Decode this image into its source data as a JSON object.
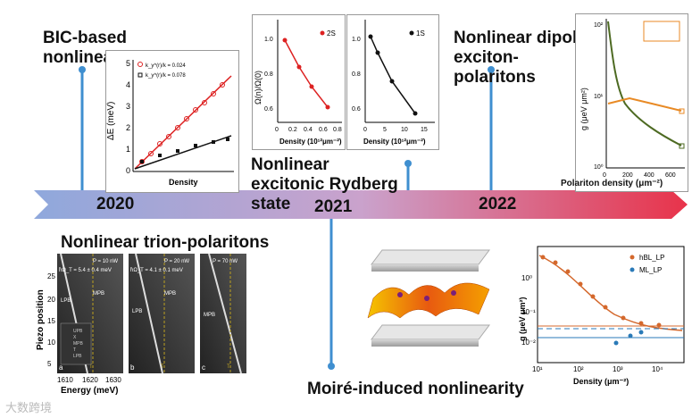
{
  "timeline": {
    "years": [
      "2020",
      "2021",
      "2022"
    ],
    "colors": {
      "start": "#8fa8dc",
      "mid": "#c7a3cf",
      "end": "#e8334a"
    }
  },
  "topics": {
    "bic": "BIC-based nonlinearity",
    "rydberg": "Nonlinear excitonic Rydberg state",
    "dipolar": "Nonlinear dipolar exciton-polaritons",
    "trion": "Nonlinear trion-polaritons",
    "moire": "Moiré-induced nonlinearity"
  },
  "bic_chart": {
    "ylabel": "ΔE (meV)",
    "xlabel": "Density",
    "legend": [
      "k_y^(r)/k = 0.024",
      "k_y^(r)/k = 0.078"
    ],
    "yticks": [
      "0",
      "1",
      "2",
      "3",
      "4",
      "5"
    ]
  },
  "rydberg_2s": {
    "ylabel": "Ω(n)/Ω(0)",
    "xlabel": "Density (10¹²μm⁻²)",
    "label": "2S",
    "xticks": [
      "0",
      "0.2",
      "0.4",
      "0.6",
      "0.8"
    ],
    "yticks": [
      "0.6",
      "0.8",
      "1.0"
    ]
  },
  "rydberg_1s": {
    "xlabel": "Density (10¹²μm⁻²)",
    "label": "1S",
    "xticks": [
      "0",
      "5",
      "10",
      "15"
    ],
    "yticks": [
      "0.6",
      "0.8",
      "1.0"
    ]
  },
  "dipolar_chart": {
    "ylabel": "g (μeV μm²)",
    "xlabel": "Polariton density (μm⁻²)",
    "xticks": [
      "0",
      "200",
      "400",
      "600"
    ],
    "yticks": [
      "10⁰",
      "10¹",
      "10²"
    ]
  },
  "trion_chart": {
    "ylabel": "Piezo position",
    "xlabel": "Energy (meV)",
    "xticks": [
      "1610",
      "1620",
      "1630"
    ],
    "yticks": [
      "25",
      "20",
      "15",
      "10",
      "5"
    ],
    "panels": [
      {
        "letter": "a",
        "power": "P = 10 nW",
        "g": "ħΩ_T = 5.4 ± 0.4 meV",
        "mpb": "MPB",
        "lpb": "LPB",
        "t": "T"
      },
      {
        "letter": "b",
        "power": "P = 20 nW",
        "g": "ħΩ_T = 4.1 ± 0.1 meV",
        "mpb": "MPB",
        "lpb": "LPB",
        "t": "T"
      },
      {
        "letter": "c",
        "power": "P = 70 nW",
        "g": "",
        "mpb": "MPB",
        "lpb": "",
        "t": "T"
      }
    ],
    "inset": [
      "UPB",
      "X",
      "MPB",
      "T",
      "LPB"
    ]
  },
  "moire_chart": {
    "ylabel": "g (μeV μm²)",
    "xlabel": "Density (μm⁻²)",
    "legend": [
      "hBL_LP",
      "ML_LP"
    ],
    "xticks": [
      "10¹",
      "10²",
      "10³",
      "10⁴"
    ],
    "yticks": [
      "10⁰",
      "10⁻¹",
      "10⁻²"
    ]
  },
  "watermark": "大数跨境"
}
